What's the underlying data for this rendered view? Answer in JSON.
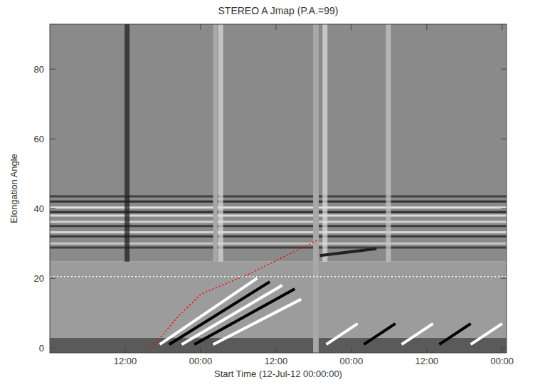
{
  "chart_data": {
    "type": "jmap",
    "title": "STEREO A Jmap (P.A.=99)",
    "xlabel": "Start Time (12-Jul-12 00:00:00)",
    "ylabel": "Elongation Angle",
    "xlim": [
      0,
      72.7
    ],
    "ylim": [
      -1.4,
      92.9
    ],
    "xticks": [
      {
        "value": 12,
        "label": "12:00"
      },
      {
        "value": 24,
        "label": "00:00"
      },
      {
        "value": 36,
        "label": "12:00"
      },
      {
        "value": 48,
        "label": "00:00"
      },
      {
        "value": 60,
        "label": "12:00"
      },
      {
        "value": 72,
        "label": "00:00"
      }
    ],
    "yticks": [
      0,
      20,
      40,
      60,
      80
    ],
    "fields": [
      {
        "ylim": [
          -1.4,
          3
        ],
        "color": "#5a5a5a"
      },
      {
        "ylim": [
          3,
          24.8
        ],
        "color": "#9c9c9c"
      },
      {
        "ylim": [
          24.8,
          92.9
        ],
        "color": "#8a8a8a"
      }
    ],
    "bands": [
      {
        "y": 43.5,
        "color": "#333333"
      },
      {
        "y": 42,
        "color": "#222222"
      },
      {
        "y": 40.3,
        "color": "#f0f0f0"
      },
      {
        "y": 39,
        "color": "#202020"
      },
      {
        "y": 38,
        "color": "#e8e8e8"
      },
      {
        "y": 36.2,
        "color": "#dddddd"
      },
      {
        "y": 35,
        "color": "#303030"
      },
      {
        "y": 33.2,
        "color": "#e0e0e0"
      },
      {
        "y": 32,
        "color": "#2a2a2a"
      },
      {
        "y": 30,
        "color": "#d0d0d0"
      },
      {
        "y": 28.8,
        "color": "#333333"
      }
    ],
    "vertical_streaks": [
      {
        "x": 12.3,
        "color": "#1a1a1a"
      },
      {
        "x": 27.2,
        "color": "#dddddd"
      },
      {
        "x": 43.8,
        "color": "#e0e0e0"
      },
      {
        "x": 53.9,
        "color": "#c8c8c8"
      }
    ],
    "gaps": [
      {
        "x": [
          26.0,
          26.7
        ],
        "ylim": [
          24.8,
          92.9
        ],
        "color": "#a8a8a8"
      },
      {
        "x": [
          41.9,
          42.8
        ],
        "ylim": [
          -1.4,
          92.9
        ],
        "color": "#a8a8a8"
      }
    ],
    "tracks": [
      {
        "x": [
          17.5,
          33
        ],
        "values": [
          1,
          20
        ],
        "color": "#ffffff"
      },
      {
        "x": [
          19,
          35
        ],
        "values": [
          1,
          19
        ],
        "color": "#000000"
      },
      {
        "x": [
          21,
          37
        ],
        "values": [
          1,
          18
        ],
        "color": "#ffffff"
      },
      {
        "x": [
          23,
          39
        ],
        "values": [
          1,
          17
        ],
        "color": "#000000"
      },
      {
        "x": [
          26,
          40
        ],
        "values": [
          1,
          14
        ],
        "color": "#ffffff"
      },
      {
        "x": [
          44,
          49
        ],
        "values": [
          1,
          7
        ],
        "color": "#ffffff"
      },
      {
        "x": [
          50,
          55
        ],
        "values": [
          1,
          7
        ],
        "color": "#000000"
      },
      {
        "x": [
          56,
          61
        ],
        "values": [
          1,
          7
        ],
        "color": "#ffffff"
      },
      {
        "x": [
          62,
          67
        ],
        "values": [
          1,
          7
        ],
        "color": "#000000"
      },
      {
        "x": [
          67,
          72
        ],
        "values": [
          1,
          7
        ],
        "color": "#ffffff"
      },
      {
        "x": [
          43,
          52
        ],
        "values": [
          26.5,
          28.5
        ],
        "color": "#222222"
      }
    ],
    "series": [
      {
        "color": "#ff0000",
        "line_style": "dotted",
        "x": [
          16.2,
          20.4,
          24.1,
          31.7,
          42.5
        ],
        "values": [
          0,
          9,
          15.5,
          21.2,
          30.8
        ]
      },
      {
        "color": "#ffffff",
        "line_style": "dotted",
        "x": [
          0,
          72.7
        ],
        "values": [
          20.5,
          20.5
        ]
      }
    ]
  }
}
